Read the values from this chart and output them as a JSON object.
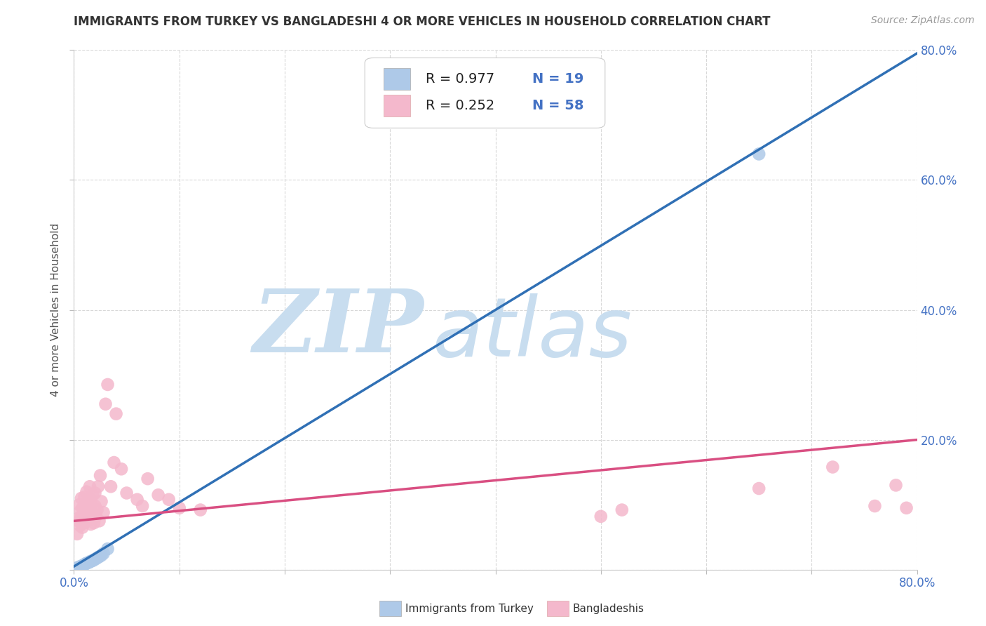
{
  "title": "IMMIGRANTS FROM TURKEY VS BANGLADESHI 4 OR MORE VEHICLES IN HOUSEHOLD CORRELATION CHART",
  "source": "Source: ZipAtlas.com",
  "ylabel": "4 or more Vehicles in Household",
  "xmin": 0.0,
  "xmax": 0.8,
  "ymin": 0.0,
  "ymax": 0.8,
  "legend_R_blue": "R = 0.977",
  "legend_N_blue": "N = 19",
  "legend_R_pink": "R = 0.252",
  "legend_N_pink": "N = 58",
  "blue_color": "#aec9e8",
  "pink_color": "#f4b8cc",
  "blue_line_color": "#3070b5",
  "pink_line_color": "#d94f82",
  "watermark_color": "#c8ddef",
  "blue_scatter_x": [
    0.003,
    0.005,
    0.006,
    0.008,
    0.009,
    0.01,
    0.011,
    0.012,
    0.014,
    0.015,
    0.016,
    0.018,
    0.02,
    0.022,
    0.024,
    0.026,
    0.028,
    0.032,
    0.65
  ],
  "blue_scatter_y": [
    0.003,
    0.004,
    0.005,
    0.006,
    0.007,
    0.008,
    0.009,
    0.01,
    0.011,
    0.012,
    0.013,
    0.014,
    0.016,
    0.018,
    0.02,
    0.022,
    0.025,
    0.032,
    0.64
  ],
  "pink_scatter_x": [
    0.003,
    0.004,
    0.005,
    0.005,
    0.006,
    0.006,
    0.007,
    0.007,
    0.008,
    0.008,
    0.009,
    0.009,
    0.01,
    0.01,
    0.011,
    0.011,
    0.012,
    0.012,
    0.013,
    0.013,
    0.014,
    0.015,
    0.015,
    0.016,
    0.016,
    0.017,
    0.018,
    0.019,
    0.02,
    0.02,
    0.021,
    0.022,
    0.023,
    0.024,
    0.025,
    0.026,
    0.028,
    0.03,
    0.032,
    0.035,
    0.038,
    0.04,
    0.045,
    0.05,
    0.06,
    0.065,
    0.07,
    0.08,
    0.09,
    0.1,
    0.12,
    0.5,
    0.52,
    0.65,
    0.72,
    0.76,
    0.78,
    0.79
  ],
  "pink_scatter_y": [
    0.055,
    0.075,
    0.08,
    0.1,
    0.068,
    0.09,
    0.078,
    0.11,
    0.065,
    0.095,
    0.072,
    0.085,
    0.1,
    0.112,
    0.078,
    0.092,
    0.088,
    0.12,
    0.075,
    0.105,
    0.082,
    0.095,
    0.128,
    0.07,
    0.108,
    0.088,
    0.115,
    0.072,
    0.098,
    0.118,
    0.082,
    0.092,
    0.128,
    0.075,
    0.145,
    0.105,
    0.088,
    0.255,
    0.285,
    0.128,
    0.165,
    0.24,
    0.155,
    0.118,
    0.108,
    0.098,
    0.14,
    0.115,
    0.108,
    0.095,
    0.092,
    0.082,
    0.092,
    0.125,
    0.158,
    0.098,
    0.13,
    0.095
  ],
  "blue_trend_x": [
    0.0,
    0.8
  ],
  "blue_trend_y": [
    0.005,
    0.795
  ],
  "pink_trend_x": [
    0.0,
    0.8
  ],
  "pink_trend_y": [
    0.075,
    0.2
  ],
  "background_color": "#ffffff",
  "grid_color": "#d8d8d8",
  "title_fontsize": 12,
  "source_fontsize": 10,
  "tick_fontsize": 12,
  "label_fontsize": 11,
  "legend_fontsize": 14
}
